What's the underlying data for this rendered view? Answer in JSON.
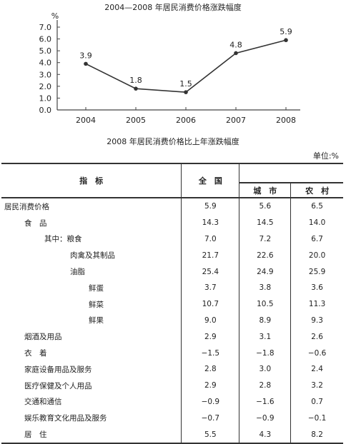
{
  "chart_data": {
    "type": "line",
    "title": "2004—2008 年居民消费价格涨跌幅度",
    "ylabel": "%",
    "x": [
      "2004",
      "2005",
      "2006",
      "2007",
      "2008"
    ],
    "values": [
      3.9,
      1.8,
      1.5,
      4.8,
      5.9
    ],
    "ylim": [
      0,
      7
    ],
    "yticks": [
      "7.0",
      "6.0",
      "5.0",
      "4.0",
      "3.0",
      "2.0",
      "1.0",
      "0.0"
    ],
    "data_labels": [
      "3.9",
      "1.8",
      "1.5",
      "4.8",
      "5.9"
    ],
    "grid": false
  },
  "table": {
    "title": "2008 年居民消费价格比上年涨跌幅度",
    "unit": "单位:%",
    "headers": {
      "indicator": "指　标",
      "national": "全　国",
      "city": "城　市",
      "rural": "农　村"
    },
    "rows": [
      {
        "name": "居民消费价格",
        "national": "5.9",
        "city": "5.6",
        "rural": "6.5",
        "indent": 1
      },
      {
        "name": "食　品",
        "national": "14.3",
        "city": "14.5",
        "rural": "14.0",
        "indent": 2
      },
      {
        "name": "其中：粮食",
        "national": "7.0",
        "city": "7.2",
        "rural": "6.7",
        "indent": 3
      },
      {
        "name": "肉禽及其制品",
        "national": "21.7",
        "city": "22.6",
        "rural": "20.0",
        "indent": 4
      },
      {
        "name": "油脂",
        "national": "25.4",
        "city": "24.9",
        "rural": "25.9",
        "indent": 4
      },
      {
        "name": "鲜蛋",
        "national": "3.7",
        "city": "3.8",
        "rural": "3.6",
        "indent": 5
      },
      {
        "name": "鲜菜",
        "national": "10.7",
        "city": "10.5",
        "rural": "11.3",
        "indent": 5
      },
      {
        "name": "鲜果",
        "national": "9.0",
        "city": "8.9",
        "rural": "9.3",
        "indent": 5
      },
      {
        "name": "烟酒及用品",
        "national": "2.9",
        "city": "3.1",
        "rural": "2.6",
        "indent": 2
      },
      {
        "name": "衣　着",
        "national": "−1.5",
        "city": "−1.8",
        "rural": "−0.6",
        "indent": 2
      },
      {
        "name": "家庭设备用品及服务",
        "national": "2.8",
        "city": "3.0",
        "rural": "2.4",
        "indent": 2
      },
      {
        "name": "医疗保健及个人用品",
        "national": "2.9",
        "city": "2.8",
        "rural": "3.2",
        "indent": 2
      },
      {
        "name": "交通和通信",
        "national": "−0.9",
        "city": "−1.6",
        "rural": "0.7",
        "indent": 2
      },
      {
        "name": "娱乐教育文化用品及服务",
        "national": "−0.7",
        "city": "−0.9",
        "rural": "−0.1",
        "indent": 2
      },
      {
        "name": "居　住",
        "national": "5.5",
        "city": "4.3",
        "rural": "8.2",
        "indent": 2
      }
    ]
  }
}
